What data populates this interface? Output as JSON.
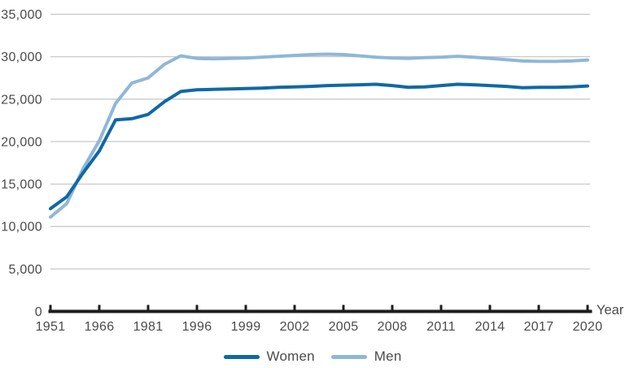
{
  "colors": {
    "women_line": "#1068a6",
    "men_line": "#8fb7d7",
    "grid": "#c9c9c9",
    "axis": "#1d1d1b",
    "text": "#4b4b4a"
  },
  "chart_data": {
    "type": "line",
    "title": "",
    "xlabel": "Year",
    "ylabel": "",
    "ylim": [
      0,
      35000
    ],
    "y_ticks": [
      0,
      5000,
      10000,
      15000,
      20000,
      25000,
      30000,
      35000
    ],
    "grid": "horizontal",
    "legend_position": "bottom",
    "x": [
      1951,
      1956,
      1961,
      1966,
      1971,
      1976,
      1981,
      1986,
      1991,
      1996,
      1997,
      1998,
      1999,
      2000,
      2001,
      2002,
      2003,
      2004,
      2005,
      2006,
      2007,
      2008,
      2009,
      2010,
      2011,
      2012,
      2013,
      2014,
      2015,
      2016,
      2017,
      2018,
      2019,
      2020
    ],
    "x_ticks": [
      1951,
      1966,
      1981,
      1996,
      1999,
      2002,
      2005,
      2008,
      2011,
      2014,
      2017,
      2020
    ],
    "series": [
      {
        "name": "Women",
        "values": [
          12100,
          13500,
          16300,
          18900,
          22550,
          22700,
          23200,
          24700,
          25900,
          26100,
          26150,
          26200,
          26250,
          26300,
          26400,
          26450,
          26500,
          26600,
          26650,
          26700,
          26750,
          26600,
          26400,
          26450,
          26600,
          26750,
          26700,
          26600,
          26500,
          26350,
          26400,
          26400,
          26450,
          26550
        ]
      },
      {
        "name": "Men",
        "values": [
          11100,
          12700,
          16800,
          20100,
          24500,
          26900,
          27500,
          29100,
          30100,
          29800,
          29750,
          29800,
          29850,
          29950,
          30050,
          30150,
          30250,
          30300,
          30250,
          30100,
          29950,
          29850,
          29800,
          29900,
          29950,
          30050,
          29950,
          29800,
          29650,
          29500,
          29450,
          29450,
          29500,
          29600
        ]
      }
    ]
  }
}
